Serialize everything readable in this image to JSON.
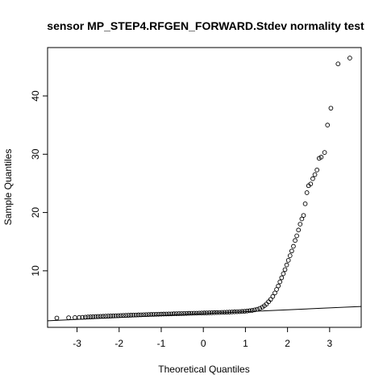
{
  "chart_data": {
    "type": "scatter",
    "title": "sensor MP_STEP4.RFGEN_FORWARD.Stdev normality test",
    "xlabel": "Theoretical Quantiles",
    "ylabel": "Sample Quantiles",
    "xlim": [
      -3.7,
      3.75
    ],
    "ylim": [
      0.3,
      48.3
    ],
    "xticks": [
      -3,
      -2,
      -1,
      0,
      1,
      2,
      3
    ],
    "yticks": [
      10,
      20,
      30,
      40
    ],
    "grid": false,
    "reference_line": {
      "intercept": 2.65,
      "slope": 0.33
    },
    "points": [
      [
        -3.48,
        1.9
      ],
      [
        -3.2,
        1.95
      ],
      [
        -3.05,
        1.98
      ],
      [
        -2.95,
        2.0
      ],
      [
        -2.87,
        2.02
      ],
      [
        -2.8,
        2.05
      ],
      [
        -2.74,
        2.08
      ],
      [
        -2.68,
        2.1
      ],
      [
        -2.62,
        2.12
      ],
      [
        -2.56,
        2.15
      ],
      [
        -2.5,
        2.17
      ],
      [
        -2.44,
        2.19
      ],
      [
        -2.38,
        2.2
      ],
      [
        -2.32,
        2.22
      ],
      [
        -2.26,
        2.24
      ],
      [
        -2.2,
        2.26
      ],
      [
        -2.14,
        2.28
      ],
      [
        -2.08,
        2.3
      ],
      [
        -2.02,
        2.31
      ],
      [
        -1.96,
        2.33
      ],
      [
        -1.9,
        2.35
      ],
      [
        -1.84,
        2.36
      ],
      [
        -1.78,
        2.38
      ],
      [
        -1.72,
        2.39
      ],
      [
        -1.66,
        2.41
      ],
      [
        -1.6,
        2.42
      ],
      [
        -1.54,
        2.44
      ],
      [
        -1.48,
        2.45
      ],
      [
        -1.42,
        2.47
      ],
      [
        -1.36,
        2.48
      ],
      [
        -1.3,
        2.5
      ],
      [
        -1.24,
        2.51
      ],
      [
        -1.18,
        2.52
      ],
      [
        -1.12,
        2.54
      ],
      [
        -1.06,
        2.55
      ],
      [
        -1.0,
        2.56
      ],
      [
        -0.94,
        2.58
      ],
      [
        -0.88,
        2.59
      ],
      [
        -0.82,
        2.6
      ],
      [
        -0.76,
        2.61
      ],
      [
        -0.7,
        2.63
      ],
      [
        -0.64,
        2.64
      ],
      [
        -0.58,
        2.65
      ],
      [
        -0.52,
        2.66
      ],
      [
        -0.46,
        2.67
      ],
      [
        -0.4,
        2.69
      ],
      [
        -0.34,
        2.7
      ],
      [
        -0.28,
        2.71
      ],
      [
        -0.22,
        2.72
      ],
      [
        -0.16,
        2.73
      ],
      [
        -0.1,
        2.75
      ],
      [
        -0.04,
        2.76
      ],
      [
        0.02,
        2.77
      ],
      [
        0.08,
        2.78
      ],
      [
        0.14,
        2.8
      ],
      [
        0.2,
        2.81
      ],
      [
        0.26,
        2.82
      ],
      [
        0.32,
        2.84
      ],
      [
        0.38,
        2.85
      ],
      [
        0.44,
        2.87
      ],
      [
        0.5,
        2.88
      ],
      [
        0.56,
        2.9
      ],
      [
        0.62,
        2.92
      ],
      [
        0.68,
        2.94
      ],
      [
        0.74,
        2.96
      ],
      [
        0.8,
        2.98
      ],
      [
        0.86,
        3.0
      ],
      [
        0.92,
        3.03
      ],
      [
        0.98,
        3.06
      ],
      [
        1.04,
        3.1
      ],
      [
        1.1,
        3.15
      ],
      [
        1.16,
        3.2
      ],
      [
        1.22,
        3.3
      ],
      [
        1.28,
        3.4
      ],
      [
        1.34,
        3.55
      ],
      [
        1.4,
        3.75
      ],
      [
        1.45,
        4.0
      ],
      [
        1.5,
        4.3
      ],
      [
        1.55,
        4.7
      ],
      [
        1.6,
        5.1
      ],
      [
        1.65,
        5.6
      ],
      [
        1.7,
        6.2
      ],
      [
        1.74,
        6.8
      ],
      [
        1.78,
        7.4
      ],
      [
        1.82,
        8.1
      ],
      [
        1.86,
        8.8
      ],
      [
        1.9,
        9.5
      ],
      [
        1.94,
        10.2
      ],
      [
        1.98,
        11.0
      ],
      [
        2.02,
        11.8
      ],
      [
        2.06,
        12.6
      ],
      [
        2.1,
        13.4
      ],
      [
        2.14,
        14.2
      ],
      [
        2.18,
        15.2
      ],
      [
        2.22,
        16.0
      ],
      [
        2.26,
        17.0
      ],
      [
        2.3,
        18.0
      ],
      [
        2.34,
        18.9
      ],
      [
        2.38,
        19.5
      ],
      [
        2.42,
        21.5
      ],
      [
        2.46,
        23.4
      ],
      [
        2.5,
        24.6
      ],
      [
        2.55,
        24.9
      ],
      [
        2.6,
        25.8
      ],
      [
        2.65,
        26.5
      ],
      [
        2.7,
        27.3
      ],
      [
        2.75,
        29.3
      ],
      [
        2.8,
        29.5
      ],
      [
        2.88,
        30.3
      ],
      [
        2.95,
        35.0
      ],
      [
        3.03,
        37.9
      ],
      [
        3.2,
        45.5
      ],
      [
        3.48,
        46.5
      ]
    ]
  }
}
